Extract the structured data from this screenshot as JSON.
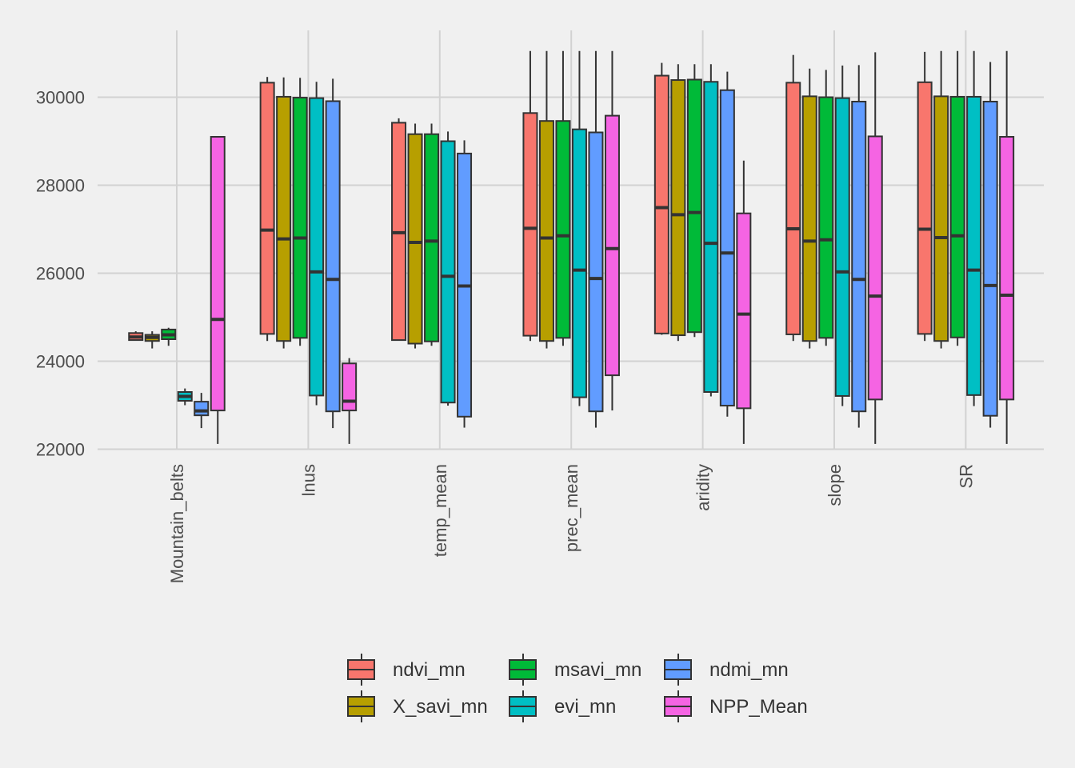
{
  "chart_data": {
    "type": "boxplot",
    "title": "",
    "xlabel": "",
    "ylabel": "",
    "ylim": [
      21600,
      31500
    ],
    "yticks": [
      22000,
      24000,
      26000,
      28000,
      30000
    ],
    "categories": [
      "Mountain_belts",
      "lnus",
      "temp_mean",
      "prec_mean",
      "aridity",
      "slope",
      "SR"
    ],
    "series": [
      {
        "name": "ndvi_mn",
        "color": "#F8766D",
        "boxes": [
          {
            "whislo": 24480,
            "q1": 24480,
            "med": 24550,
            "q3": 24640,
            "whishi": 24680
          },
          {
            "whislo": 24460,
            "q1": 24620,
            "med": 26980,
            "q3": 30330,
            "whishi": 30460
          },
          {
            "whislo": 24480,
            "q1": 24480,
            "med": 26920,
            "q3": 29420,
            "whishi": 29520
          },
          {
            "whislo": 24460,
            "q1": 24580,
            "med": 27020,
            "q3": 29640,
            "whishi": 31050
          },
          {
            "whislo": 24600,
            "q1": 24630,
            "med": 27490,
            "q3": 30490,
            "whishi": 30780
          },
          {
            "whislo": 24460,
            "q1": 24610,
            "med": 27010,
            "q3": 30330,
            "whishi": 30960
          },
          {
            "whislo": 24460,
            "q1": 24620,
            "med": 27000,
            "q3": 30340,
            "whishi": 31030
          }
        ]
      },
      {
        "name": "X_savi_mn",
        "color": "#B79F00",
        "boxes": [
          {
            "whislo": 24290,
            "q1": 24460,
            "med": 24540,
            "q3": 24600,
            "whishi": 24680
          },
          {
            "whislo": 24290,
            "q1": 24460,
            "med": 26780,
            "q3": 30010,
            "whishi": 30450
          },
          {
            "whislo": 24290,
            "q1": 24400,
            "med": 26700,
            "q3": 29160,
            "whishi": 29400
          },
          {
            "whislo": 24290,
            "q1": 24460,
            "med": 26800,
            "q3": 29460,
            "whishi": 31050
          },
          {
            "whislo": 24460,
            "q1": 24590,
            "med": 27330,
            "q3": 30390,
            "whishi": 30750
          },
          {
            "whislo": 24290,
            "q1": 24460,
            "med": 26730,
            "q3": 30020,
            "whishi": 30650
          },
          {
            "whislo": 24290,
            "q1": 24460,
            "med": 26810,
            "q3": 30020,
            "whishi": 31050
          }
        ]
      },
      {
        "name": "msavi_mn",
        "color": "#00BA38",
        "boxes": [
          {
            "whislo": 24350,
            "q1": 24500,
            "med": 24600,
            "q3": 24720,
            "whishi": 24760
          },
          {
            "whislo": 24350,
            "q1": 24530,
            "med": 26800,
            "q3": 29990,
            "whishi": 30440
          },
          {
            "whislo": 24350,
            "q1": 24450,
            "med": 26730,
            "q3": 29160,
            "whishi": 29400
          },
          {
            "whislo": 24350,
            "q1": 24530,
            "med": 26850,
            "q3": 29460,
            "whishi": 31050
          },
          {
            "whislo": 24550,
            "q1": 24660,
            "med": 27380,
            "q3": 30400,
            "whishi": 30750
          },
          {
            "whislo": 24350,
            "q1": 24530,
            "med": 26760,
            "q3": 30000,
            "whishi": 30620
          },
          {
            "whislo": 24350,
            "q1": 24540,
            "med": 26850,
            "q3": 30010,
            "whishi": 31050
          }
        ]
      },
      {
        "name": "evi_mn",
        "color": "#00BFC4",
        "boxes": [
          {
            "whislo": 23000,
            "q1": 23100,
            "med": 23200,
            "q3": 23300,
            "whishi": 23380
          },
          {
            "whislo": 23000,
            "q1": 23220,
            "med": 26030,
            "q3": 29980,
            "whishi": 30350
          },
          {
            "whislo": 22990,
            "q1": 23060,
            "med": 25930,
            "q3": 29000,
            "whishi": 29220
          },
          {
            "whislo": 22980,
            "q1": 23180,
            "med": 26070,
            "q3": 29270,
            "whishi": 31050
          },
          {
            "whislo": 23200,
            "q1": 23300,
            "med": 26680,
            "q3": 30350,
            "whishi": 30750
          },
          {
            "whislo": 22980,
            "q1": 23210,
            "med": 26030,
            "q3": 29980,
            "whishi": 30720
          },
          {
            "whislo": 22980,
            "q1": 23230,
            "med": 26070,
            "q3": 30010,
            "whishi": 31050
          }
        ]
      },
      {
        "name": "ndmi_mn",
        "color": "#619CFF",
        "boxes": [
          {
            "whislo": 22480,
            "q1": 22770,
            "med": 22870,
            "q3": 23080,
            "whishi": 23280
          },
          {
            "whislo": 22480,
            "q1": 22860,
            "med": 25860,
            "q3": 29910,
            "whishi": 30420
          },
          {
            "whislo": 22490,
            "q1": 22740,
            "med": 25710,
            "q3": 28720,
            "whishi": 29020
          },
          {
            "whislo": 22490,
            "q1": 22860,
            "med": 25880,
            "q3": 29200,
            "whishi": 31050
          },
          {
            "whislo": 22740,
            "q1": 22990,
            "med": 26460,
            "q3": 30160,
            "whishi": 30580
          },
          {
            "whislo": 22490,
            "q1": 22860,
            "med": 25860,
            "q3": 29900,
            "whishi": 30730
          },
          {
            "whislo": 22490,
            "q1": 22760,
            "med": 25720,
            "q3": 29900,
            "whishi": 30800
          }
        ]
      },
      {
        "name": "NPP_Mean",
        "color": "#F564E3",
        "boxes": [
          {
            "whislo": 22120,
            "q1": 22880,
            "med": 24950,
            "q3": 29100,
            "whishi": 29100
          },
          {
            "whislo": 22120,
            "q1": 22880,
            "med": 23090,
            "q3": 23950,
            "whishi": 24070
          },
          null,
          {
            "whislo": 22880,
            "q1": 23680,
            "med": 26560,
            "q3": 29580,
            "whishi": 31050
          },
          {
            "whislo": 22120,
            "q1": 22930,
            "med": 25070,
            "q3": 27360,
            "whishi": 28560
          },
          {
            "whislo": 22120,
            "q1": 23130,
            "med": 25480,
            "q3": 29110,
            "whishi": 31020
          },
          {
            "whislo": 22120,
            "q1": 23130,
            "med": 25500,
            "q3": 29100,
            "whishi": 31050
          }
        ]
      }
    ],
    "grid": true,
    "legend_position": "bottom"
  }
}
